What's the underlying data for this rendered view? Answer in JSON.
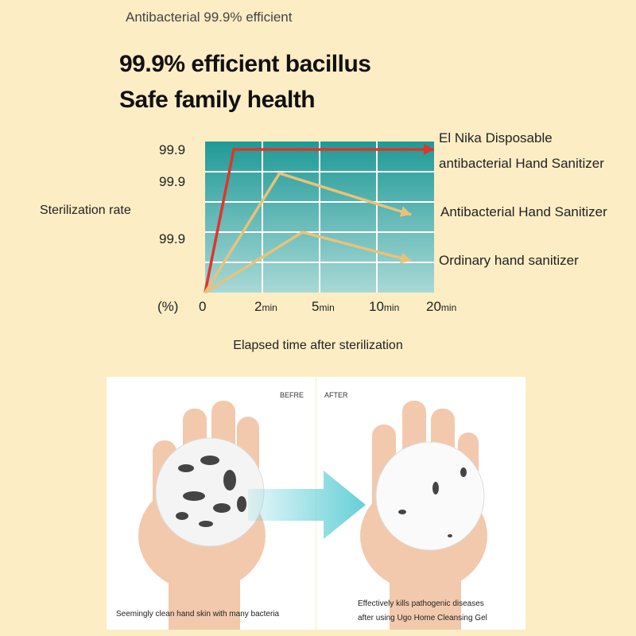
{
  "top_note": "Antibacterial 99.9% efficient",
  "headline": {
    "line1": "99.9% efficient bacillus",
    "line2": "Safe family health"
  },
  "colors": {
    "background": "#fcedc5",
    "teal_dark": "#1f9a96",
    "teal_light": "#a8d8d6",
    "red": "#e0352a",
    "tan": "#e8c27a",
    "arrow": "#5dcdd5"
  },
  "chart_data": {
    "type": "line",
    "ylabel": "Sterilization rate",
    "y_unit": "(%)",
    "y_tick_labels": [
      "99.9",
      "99.9",
      "99.9"
    ],
    "x_tick_labels": [
      {
        "num": "0",
        "unit": ""
      },
      {
        "num": "2",
        "unit": "min"
      },
      {
        "num": "5",
        "unit": "min"
      },
      {
        "num": "10",
        "unit": "min"
      },
      {
        "num": "20",
        "unit": "min"
      }
    ],
    "xlabel": "Elapsed time after sterilization",
    "grid": true,
    "series": [
      {
        "name": "El Nika Disposable antibacterial Hand Sanitizer",
        "name_lines": [
          "El Nika Disposable",
          "antibacterial Hand Sanitizer"
        ],
        "color": "#e0352a",
        "points": [
          [
            0,
            0
          ],
          [
            0.5,
            99.9
          ],
          [
            4,
            99.9
          ]
        ]
      },
      {
        "name": "Antibacterial Hand Sanitizer",
        "name_lines": [
          "Antibacterial Hand Sanitizer"
        ],
        "color": "#e8c27a",
        "points": [
          [
            0,
            0
          ],
          [
            1.3,
            99.9
          ],
          [
            3.6,
            99.9
          ]
        ]
      },
      {
        "name": "Ordinary hand sanitizer",
        "name_lines": [
          "Ordinary hand sanitizer"
        ],
        "color": "#e8c27a",
        "points": [
          [
            0,
            0
          ],
          [
            1.7,
            99.9
          ],
          [
            3.6,
            99.9
          ]
        ]
      }
    ]
  },
  "photos": {
    "before": {
      "tag": "BEFRE",
      "caption": "Seemingly clean hand skin with many bacteria"
    },
    "after": {
      "tag": "AFTER",
      "caption_line1": "Effectively kills pathogenic diseases",
      "caption_line2": "after using Ugo Home Cleansing Gel"
    }
  }
}
